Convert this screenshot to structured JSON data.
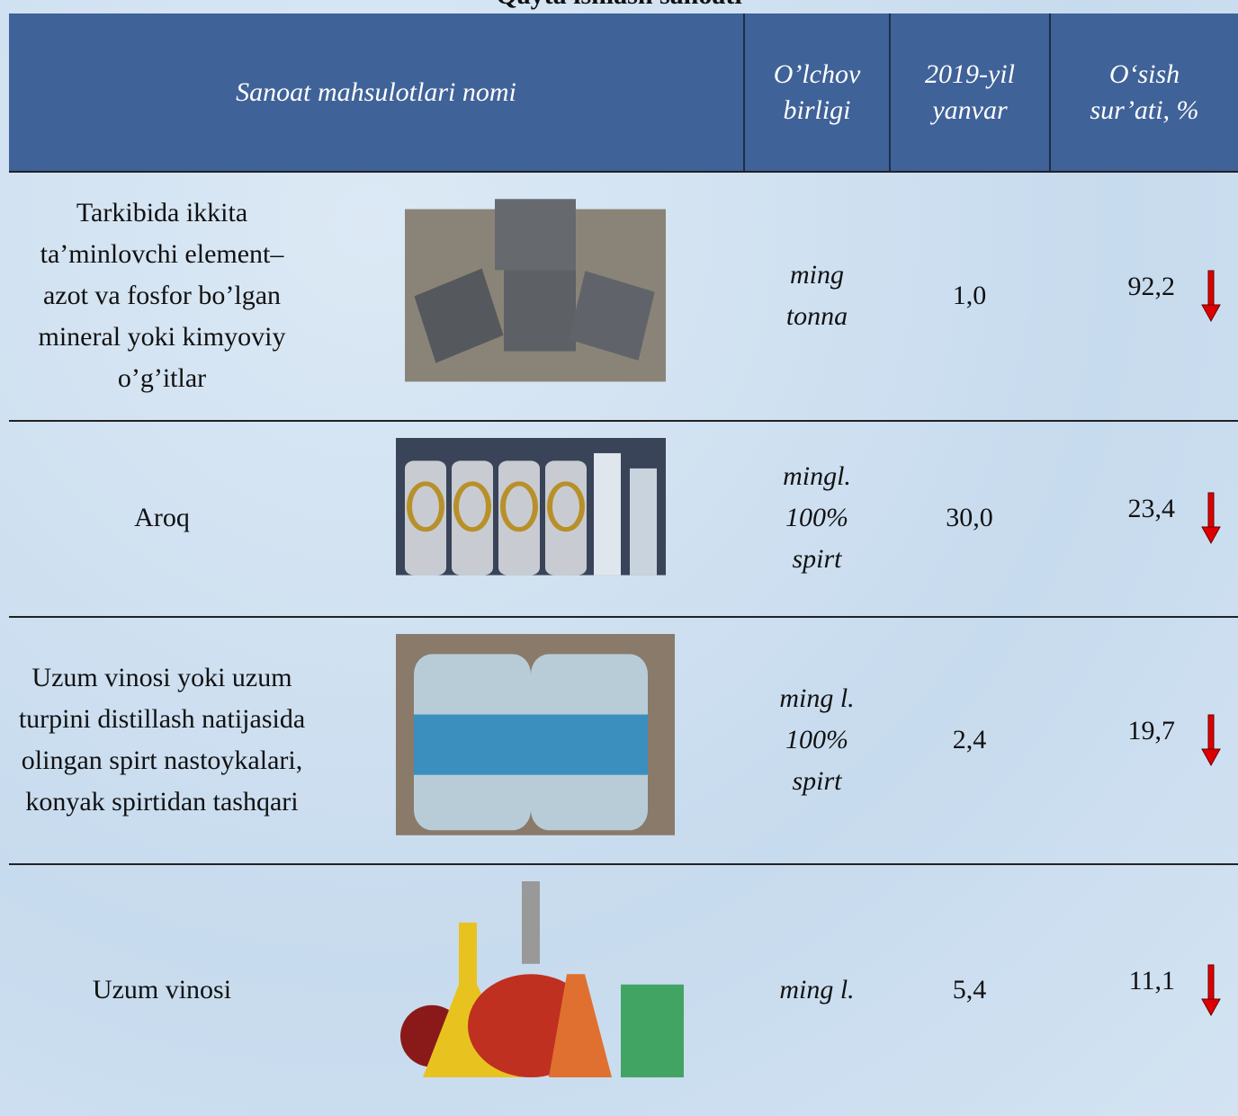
{
  "title": "Qayta ishlash sanoati",
  "table": {
    "header": [
      "Sanoat mahsulotlari nomi",
      "O’lchov birligi",
      "2019-yil yanvar",
      "O‘sish sur’ati, %"
    ],
    "rows": [
      {
        "name": "Tarkibida ikkita ta’minlovchi element–azot va fosfor bo’lgan mineral yoki kimyoviy o’g’itlar",
        "unit": [
          "ming",
          "tonna"
        ],
        "value": "1,0",
        "growth": "92,2"
      },
      {
        "name": "Aroq",
        "unit": [
          "mingl.",
          "100%",
          "spirt"
        ],
        "value": "30,0",
        "growth": "23,4"
      },
      {
        "name": "Uzum vinosi yoki uzum turpini distillash natijasida olingan spirt nastoykalari, konyak spirtidan tashqari",
        "unit": [
          "ming l.",
          "100%",
          "spirt"
        ],
        "value": "2,4",
        "growth": "19,7"
      },
      {
        "name": "Uzum vinosi",
        "unit": [
          "ming l."
        ],
        "value": "5,4",
        "growth": "11,1"
      }
    ]
  }
}
